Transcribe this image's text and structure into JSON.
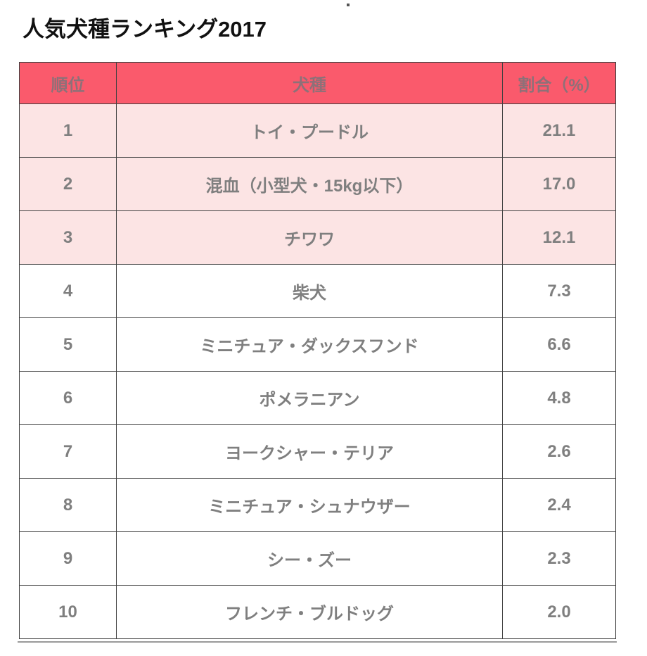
{
  "page": {
    "title": "人気犬種ランキング2017"
  },
  "table": {
    "headers": [
      "順位",
      "犬種",
      "割合（%）"
    ],
    "rows": [
      {
        "rank": "1",
        "breed": "トイ・プードル",
        "percent": "21.1",
        "highlight": true
      },
      {
        "rank": "2",
        "breed": "混血（小型犬・15kg以下）",
        "percent": "17.0",
        "highlight": true
      },
      {
        "rank": "3",
        "breed": "チワワ",
        "percent": "12.1",
        "highlight": true
      },
      {
        "rank": "4",
        "breed": "柴犬",
        "percent": "7.3",
        "highlight": false
      },
      {
        "rank": "5",
        "breed": "ミニチュア・ダックスフンド",
        "percent": "6.6",
        "highlight": false
      },
      {
        "rank": "6",
        "breed": "ポメラニアン",
        "percent": "4.8",
        "highlight": false
      },
      {
        "rank": "7",
        "breed": "ヨークシャー・テリア",
        "percent": "2.6",
        "highlight": false
      },
      {
        "rank": "8",
        "breed": "ミニチュア・シュナウザー",
        "percent": "2.4",
        "highlight": false
      },
      {
        "rank": "9",
        "breed": "シー・ズー",
        "percent": "2.3",
        "highlight": false
      },
      {
        "rank": "10",
        "breed": "フレンチ・ブルドッグ",
        "percent": "2.0",
        "highlight": false
      }
    ]
  },
  "colors": {
    "header_bg": "#fa5a6c",
    "highlight_row_bg": "#fce4e4",
    "text_gray": "#7f7f7f",
    "border": "#404040",
    "title_text": "#111111"
  },
  "chart_data": {
    "type": "table",
    "title": "人気犬種ランキング2017",
    "columns": [
      "順位",
      "犬種",
      "割合（%）"
    ],
    "rows": [
      [
        1,
        "トイ・プードル",
        21.1
      ],
      [
        2,
        "混血（小型犬・15kg以下）",
        17.0
      ],
      [
        3,
        "チワワ",
        12.1
      ],
      [
        4,
        "柴犬",
        7.3
      ],
      [
        5,
        "ミニチュア・ダックスフンド",
        6.6
      ],
      [
        6,
        "ポメラニアン",
        4.8
      ],
      [
        7,
        "ヨークシャー・テリア",
        2.6
      ],
      [
        8,
        "ミニチュア・シュナウザー",
        2.4
      ],
      [
        9,
        "シー・ズー",
        2.3
      ],
      [
        10,
        "フレンチ・ブルドッグ",
        2.0
      ]
    ],
    "layout_hints": {
      "highlighted_rows": [
        1,
        2,
        3
      ],
      "header_background": "#fa5a6c",
      "highlight_background": "#fce4e4"
    }
  }
}
